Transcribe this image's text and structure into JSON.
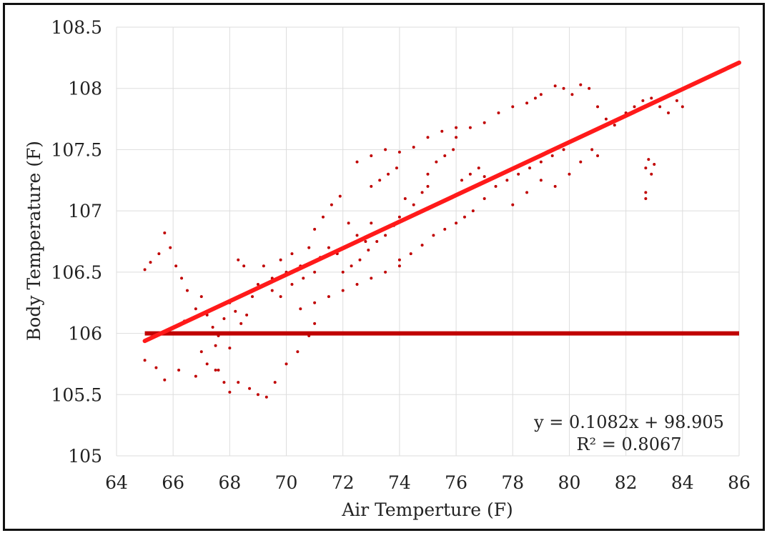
{
  "chart_data": {
    "type": "scatter",
    "title": "",
    "xlabel": "Air Temperture (F)",
    "ylabel": "Body Temperature (F)",
    "xlim": [
      64,
      86
    ],
    "ylim": [
      105,
      108.5
    ],
    "x_ticks": [
      "64",
      "66",
      "68",
      "70",
      "72",
      "74",
      "76",
      "78",
      "80",
      "82",
      "84",
      "86"
    ],
    "y_ticks": [
      "105",
      "105.5",
      "106",
      "106.5",
      "107",
      "107.5",
      "108",
      "108.5"
    ],
    "grid": true,
    "colors": {
      "points": "#c00000",
      "trendline": "#ff1a1a",
      "threshold": "#c00000"
    },
    "series": [
      {
        "values": [
          [
            65.0,
            106.52
          ],
          [
            65.2,
            106.58
          ],
          [
            65.5,
            106.65
          ],
          [
            65.7,
            106.82
          ],
          [
            65.9,
            106.7
          ],
          [
            66.1,
            106.55
          ],
          [
            66.3,
            106.45
          ],
          [
            66.5,
            106.35
          ],
          [
            65.0,
            105.78
          ],
          [
            65.4,
            105.72
          ],
          [
            65.7,
            105.62
          ],
          [
            66.2,
            105.7
          ],
          [
            66.8,
            105.65
          ],
          [
            67.2,
            105.75
          ],
          [
            67.5,
            105.7
          ],
          [
            66.0,
            106.05
          ],
          [
            66.4,
            106.1
          ],
          [
            66.8,
            106.2
          ],
          [
            67.0,
            106.3
          ],
          [
            67.2,
            106.15
          ],
          [
            67.4,
            106.05
          ],
          [
            67.6,
            105.98
          ],
          [
            67.8,
            106.12
          ],
          [
            68.0,
            106.25
          ],
          [
            68.2,
            106.18
          ],
          [
            68.4,
            106.08
          ],
          [
            68.6,
            106.15
          ],
          [
            68.8,
            106.3
          ],
          [
            68.3,
            106.6
          ],
          [
            68.5,
            106.55
          ],
          [
            67.6,
            105.7
          ],
          [
            67.8,
            105.6
          ],
          [
            68.0,
            105.52
          ],
          [
            68.3,
            105.6
          ],
          [
            68.7,
            105.55
          ],
          [
            69.0,
            105.5
          ],
          [
            69.3,
            105.48
          ],
          [
            69.6,
            105.6
          ],
          [
            70.0,
            105.75
          ],
          [
            70.4,
            105.85
          ],
          [
            70.8,
            105.98
          ],
          [
            71.0,
            106.08
          ],
          [
            67.0,
            105.85
          ],
          [
            67.5,
            105.9
          ],
          [
            68.0,
            105.88
          ],
          [
            69.0,
            106.4
          ],
          [
            69.2,
            106.55
          ],
          [
            69.5,
            106.45
          ],
          [
            69.8,
            106.6
          ],
          [
            70.0,
            106.5
          ],
          [
            70.2,
            106.65
          ],
          [
            70.5,
            106.55
          ],
          [
            70.8,
            106.7
          ],
          [
            69.5,
            106.35
          ],
          [
            69.8,
            106.3
          ],
          [
            70.2,
            106.4
          ],
          [
            70.6,
            106.45
          ],
          [
            71.0,
            106.5
          ],
          [
            71.2,
            106.62
          ],
          [
            71.5,
            106.7
          ],
          [
            71.8,
            106.65
          ],
          [
            71.0,
            106.85
          ],
          [
            71.3,
            106.95
          ],
          [
            71.6,
            107.05
          ],
          [
            71.9,
            107.12
          ],
          [
            72.2,
            106.9
          ],
          [
            72.5,
            106.8
          ],
          [
            72.8,
            106.75
          ],
          [
            73.0,
            106.9
          ],
          [
            72.0,
            106.5
          ],
          [
            72.3,
            106.55
          ],
          [
            72.6,
            106.6
          ],
          [
            72.9,
            106.68
          ],
          [
            73.2,
            106.75
          ],
          [
            73.5,
            106.8
          ],
          [
            73.8,
            106.88
          ],
          [
            74.0,
            106.95
          ],
          [
            73.0,
            107.2
          ],
          [
            73.3,
            107.25
          ],
          [
            73.6,
            107.3
          ],
          [
            73.9,
            107.35
          ],
          [
            74.2,
            107.1
          ],
          [
            74.5,
            107.05
          ],
          [
            74.8,
            107.15
          ],
          [
            75.0,
            107.2
          ],
          [
            74.0,
            106.6
          ],
          [
            74.4,
            106.65
          ],
          [
            74.8,
            106.72
          ],
          [
            75.2,
            106.8
          ],
          [
            75.6,
            106.85
          ],
          [
            76.0,
            106.9
          ],
          [
            76.3,
            106.95
          ],
          [
            76.6,
            107.0
          ],
          [
            75.0,
            107.3
          ],
          [
            75.3,
            107.4
          ],
          [
            75.6,
            107.45
          ],
          [
            75.9,
            107.5
          ],
          [
            76.2,
            107.25
          ],
          [
            76.5,
            107.3
          ],
          [
            76.8,
            107.35
          ],
          [
            77.0,
            107.28
          ],
          [
            76.0,
            107.6
          ],
          [
            76.5,
            107.68
          ],
          [
            77.0,
            107.72
          ],
          [
            77.5,
            107.8
          ],
          [
            78.0,
            107.85
          ],
          [
            78.5,
            107.88
          ],
          [
            78.8,
            107.92
          ],
          [
            79.0,
            107.95
          ],
          [
            77.0,
            107.1
          ],
          [
            77.4,
            107.2
          ],
          [
            77.8,
            107.25
          ],
          [
            78.2,
            107.3
          ],
          [
            78.6,
            107.35
          ],
          [
            79.0,
            107.4
          ],
          [
            79.4,
            107.45
          ],
          [
            79.8,
            107.5
          ],
          [
            78.0,
            107.05
          ],
          [
            78.5,
            107.15
          ],
          [
            79.0,
            107.25
          ],
          [
            79.5,
            107.2
          ],
          [
            80.0,
            107.3
          ],
          [
            80.4,
            107.4
          ],
          [
            80.8,
            107.5
          ],
          [
            81.0,
            107.45
          ],
          [
            79.5,
            108.02
          ],
          [
            79.8,
            108.0
          ],
          [
            80.1,
            107.95
          ],
          [
            80.4,
            108.03
          ],
          [
            80.7,
            108.0
          ],
          [
            81.0,
            107.85
          ],
          [
            81.3,
            107.75
          ],
          [
            81.6,
            107.7
          ],
          [
            82.0,
            107.8
          ],
          [
            82.3,
            107.85
          ],
          [
            82.6,
            107.9
          ],
          [
            82.9,
            107.92
          ],
          [
            83.2,
            107.85
          ],
          [
            83.5,
            107.8
          ],
          [
            83.8,
            107.9
          ],
          [
            84.0,
            107.85
          ],
          [
            82.7,
            107.35
          ],
          [
            82.8,
            107.42
          ],
          [
            82.9,
            107.3
          ],
          [
            83.0,
            107.38
          ],
          [
            82.7,
            107.1
          ],
          [
            82.7,
            107.15
          ],
          [
            72.5,
            107.4
          ],
          [
            73.0,
            107.45
          ],
          [
            73.5,
            107.5
          ],
          [
            74.0,
            107.48
          ],
          [
            74.5,
            107.52
          ],
          [
            75.0,
            107.6
          ],
          [
            75.5,
            107.65
          ],
          [
            76.0,
            107.68
          ],
          [
            70.5,
            106.2
          ],
          [
            71.0,
            106.25
          ],
          [
            71.5,
            106.3
          ],
          [
            72.0,
            106.35
          ],
          [
            72.5,
            106.4
          ],
          [
            73.0,
            106.45
          ],
          [
            73.5,
            106.5
          ],
          [
            74.0,
            106.55
          ]
        ]
      }
    ],
    "trendline": {
      "slope": 0.1082,
      "intercept": 98.905,
      "x_from": 65,
      "x_to": 86
    },
    "threshold": {
      "y": 106,
      "x_from": 65,
      "x_to": 86
    },
    "equation": "y = 0.1082x + 98.905",
    "r_squared": "R² = 0.8067"
  }
}
